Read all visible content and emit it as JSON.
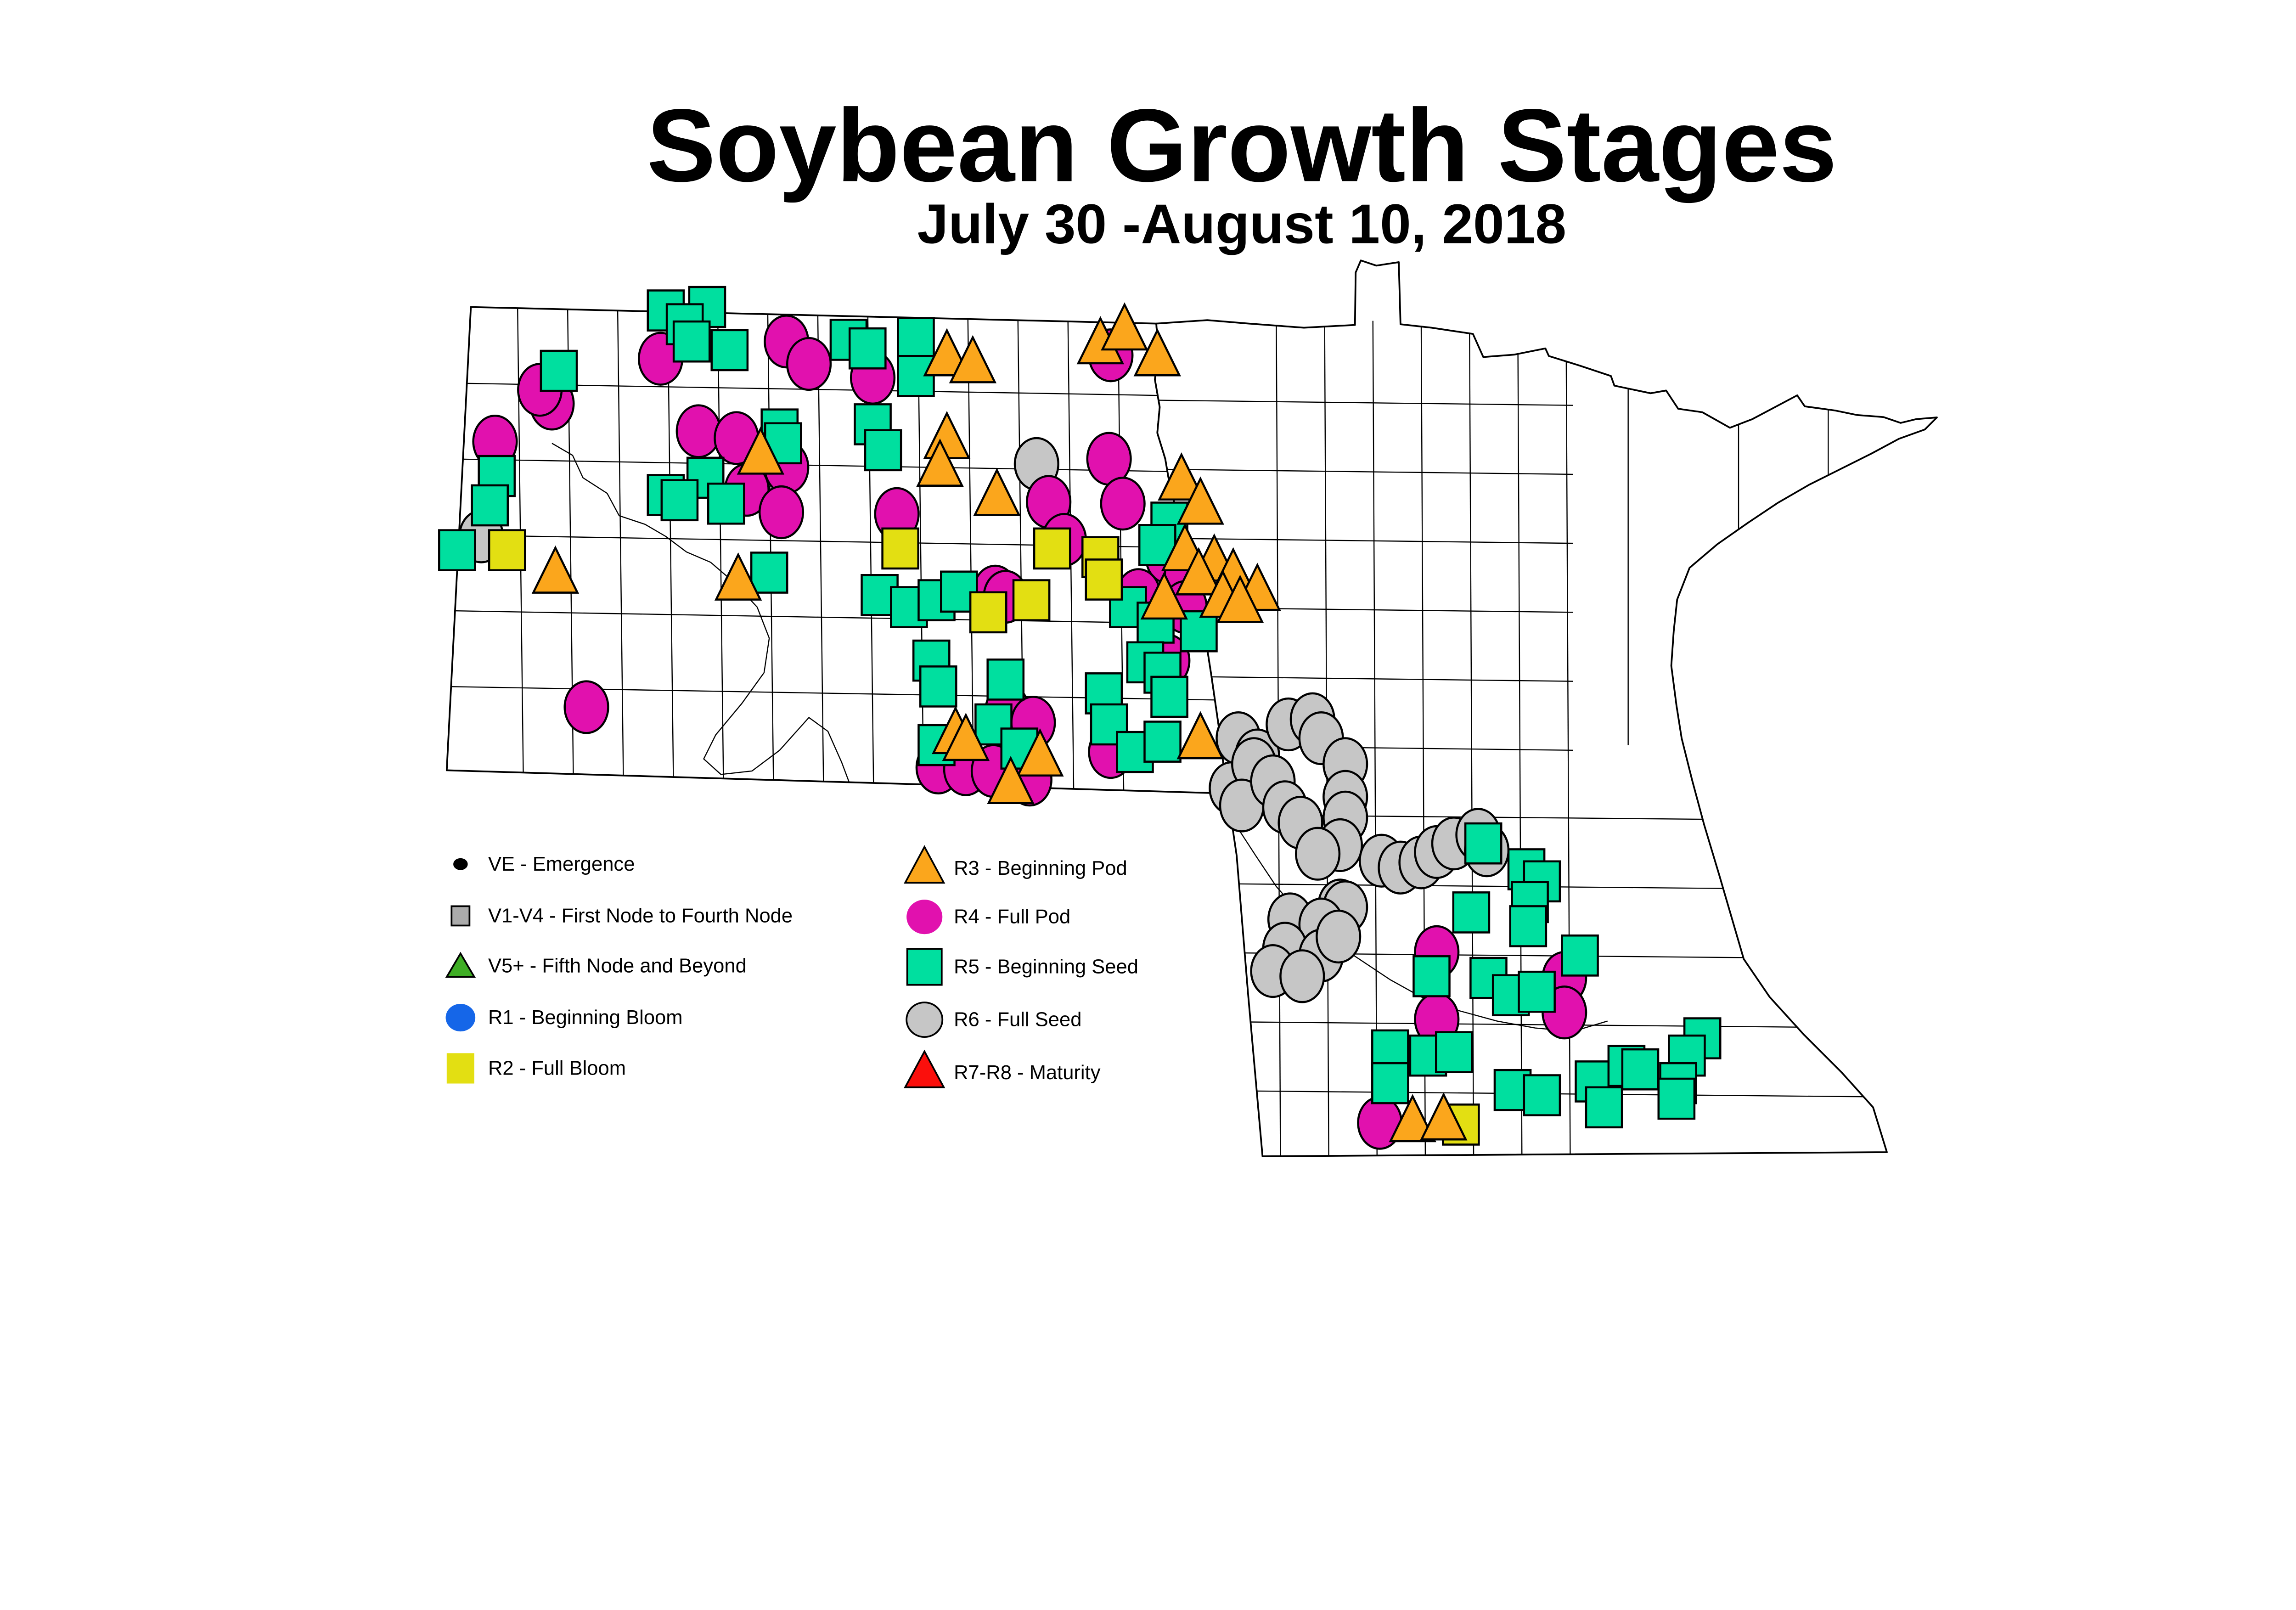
{
  "title": "Soybean Growth Stages",
  "subtitle": "July 30 -August 10, 2018",
  "legend": {
    "column1": [
      {
        "id": "VE",
        "label": "VE - Emergence",
        "shape": "dot",
        "color": "#000000",
        "outlined": false,
        "icon_size": "small"
      },
      {
        "id": "V1-V4",
        "label": "V1-V4 - First Node to Fourth Node",
        "shape": "square",
        "color": "#ABABAB",
        "outlined": true,
        "icon_size": "small"
      },
      {
        "id": "V5+",
        "label": "V5+ - Fifth Node and Beyond",
        "shape": "triangle",
        "color": "#3FAE25",
        "outlined": true,
        "icon_size": "small"
      },
      {
        "id": "R1",
        "label": "R1 - Beginning Bloom",
        "shape": "circle",
        "color": "#1566E8",
        "outlined": false,
        "icon_size": "small"
      },
      {
        "id": "R2",
        "label": "R2 - Full Bloom",
        "shape": "square",
        "color": "#E3DF12",
        "outlined": false,
        "icon_size": "medium"
      }
    ],
    "column2": [
      {
        "id": "R3",
        "label": "R3 - Beginning Pod",
        "shape": "triangle",
        "color": "#FBA61C",
        "outlined": true,
        "icon_size": "large"
      },
      {
        "id": "R4",
        "label": "R4 - Full Pod",
        "shape": "circle",
        "color": "#E111AE",
        "outlined": false,
        "icon_size": "large"
      },
      {
        "id": "R5",
        "label": "R5 - Beginning Seed",
        "shape": "square",
        "color": "#00DF9F",
        "outlined": true,
        "icon_size": "large"
      },
      {
        "id": "R6",
        "label": "R6 - Full Seed",
        "shape": "circle",
        "color": "#C6C6C6",
        "outlined": true,
        "icon_size": "large"
      },
      {
        "id": "R7-R8",
        "label": "R7-R8 - Maturity",
        "shape": "triangle",
        "color": "#FB0F0C",
        "outlined": true,
        "icon_size": "large"
      }
    ]
  },
  "map_data": {
    "type": "marker-map",
    "region": "North Dakota and Minnesota with county boundaries",
    "marker_stage_shapes": {
      "R3": "triangle",
      "R4": "circle",
      "R5": "square",
      "R6": "circle",
      "R2": "square"
    },
    "markers": {
      "R6": [
        [
          1395,
          1555
        ],
        [
          3005,
          1345
        ],
        [
          3590,
          2140
        ],
        [
          3645,
          2190
        ],
        [
          3630,
          2270
        ],
        [
          3570,
          2285
        ],
        [
          3735,
          2100
        ],
        [
          3805,
          2085
        ],
        [
          3830,
          2140
        ],
        [
          3635,
          2215
        ],
        [
          3600,
          2335
        ],
        [
          3690,
          2265
        ],
        [
          3725,
          2340
        ],
        [
          3770,
          2385
        ],
        [
          3900,
          2215
        ],
        [
          3900,
          2310
        ],
        [
          3900,
          2370
        ],
        [
          3885,
          2450
        ],
        [
          3820,
          2475
        ],
        [
          3885,
          2625
        ],
        [
          4005,
          2495
        ],
        [
          4060,
          2515
        ],
        [
          4120,
          2500
        ],
        [
          4165,
          2470
        ],
        [
          4215,
          2445
        ],
        [
          4285,
          2420
        ],
        [
          4310,
          2465
        ],
        [
          3900,
          2630
        ],
        [
          3740,
          2665
        ],
        [
          3830,
          2680
        ],
        [
          3725,
          2750
        ],
        [
          3830,
          2770
        ],
        [
          3690,
          2815
        ],
        [
          3775,
          2830
        ],
        [
          3880,
          2715
        ]
      ],
      "R4": [
        [
          1915,
          1040
        ],
        [
          2280,
          990
        ],
        [
          2345,
          1055
        ],
        [
          1600,
          1170
        ],
        [
          1565,
          1130
        ],
        [
          1435,
          1280
        ],
        [
          2025,
          1250
        ],
        [
          2135,
          1270
        ],
        [
          2280,
          1355
        ],
        [
          2165,
          1420
        ],
        [
          2265,
          1485
        ],
        [
          2530,
          1095
        ],
        [
          3220,
          1030
        ],
        [
          3040,
          1455
        ],
        [
          3215,
          1330
        ],
        [
          3255,
          1460
        ],
        [
          3085,
          1565
        ],
        [
          3385,
          1615
        ],
        [
          3440,
          1665
        ],
        [
          2885,
          1715
        ],
        [
          2915,
          1730
        ],
        [
          2920,
          2060
        ],
        [
          2995,
          2095
        ],
        [
          2720,
          2225
        ],
        [
          2800,
          2230
        ],
        [
          2880,
          2235
        ],
        [
          2985,
          2260
        ],
        [
          3300,
          1725
        ],
        [
          3435,
          1760
        ],
        [
          3385,
          1915
        ],
        [
          3220,
          2180
        ],
        [
          1700,
          2050
        ],
        [
          2600,
          1490
        ],
        [
          4165,
          2760
        ],
        [
          4165,
          2955
        ],
        [
          4535,
          2835
        ],
        [
          4535,
          2935
        ],
        [
          4000,
          3255
        ]
      ],
      "R5": [
        [
          1930,
          900
        ],
        [
          2050,
          890
        ],
        [
          1985,
          940
        ],
        [
          2005,
          990
        ],
        [
          2115,
          1015
        ],
        [
          2460,
          985
        ],
        [
          2515,
          1010
        ],
        [
          2655,
          980
        ],
        [
          2655,
          1090
        ],
        [
          1620,
          1075
        ],
        [
          2530,
          1230
        ],
        [
          2560,
          1305
        ],
        [
          1440,
          1380
        ],
        [
          1420,
          1465
        ],
        [
          2045,
          1385
        ],
        [
          2260,
          1245
        ],
        [
          2270,
          1285
        ],
        [
          1930,
          1435
        ],
        [
          1970,
          1450
        ],
        [
          2105,
          1460
        ],
        [
          1325,
          1595
        ],
        [
          3390,
          1515
        ],
        [
          3355,
          1580
        ],
        [
          2550,
          1725
        ],
        [
          2635,
          1760
        ],
        [
          2715,
          1740
        ],
        [
          2780,
          1715
        ],
        [
          2700,
          1915
        ],
        [
          2720,
          1990
        ],
        [
          2915,
          1970
        ],
        [
          2880,
          2100
        ],
        [
          2955,
          2170
        ],
        [
          2715,
          2160
        ],
        [
          3270,
          1760
        ],
        [
          3350,
          1805
        ],
        [
          3475,
          1830
        ],
        [
          3320,
          1920
        ],
        [
          3370,
          1950
        ],
        [
          3390,
          2020
        ],
        [
          3200,
          2010
        ],
        [
          3215,
          2100
        ],
        [
          3290,
          2180
        ],
        [
          3370,
          2150
        ],
        [
          2230,
          1660
        ],
        [
          4300,
          2445
        ],
        [
          4425,
          2520
        ],
        [
          4470,
          2555
        ],
        [
          4435,
          2615
        ],
        [
          4265,
          2645
        ],
        [
          4430,
          2685
        ],
        [
          4580,
          2770
        ],
        [
          4150,
          2830
        ],
        [
          4315,
          2835
        ],
        [
          4380,
          2885
        ],
        [
          4455,
          2875
        ],
        [
          4030,
          3045
        ],
        [
          4140,
          3060
        ],
        [
          4215,
          3050
        ],
        [
          4030,
          3140
        ],
        [
          4385,
          3160
        ],
        [
          4470,
          3175
        ],
        [
          4620,
          3135
        ],
        [
          4715,
          3090
        ],
        [
          4935,
          3010
        ],
        [
          4890,
          3060
        ],
        [
          4755,
          3100
        ],
        [
          4865,
          3140
        ],
        [
          4650,
          3210
        ],
        [
          4860,
          3185
        ]
      ],
      "R2": [
        [
          1470,
          1595
        ],
        [
          2610,
          1590
        ],
        [
          3050,
          1590
        ],
        [
          3190,
          1615
        ],
        [
          3200,
          1680
        ],
        [
          2865,
          1775
        ],
        [
          2990,
          1740
        ],
        [
          4235,
          3260
        ]
      ],
      "R3": [
        [
          2205,
          1315
        ],
        [
          1610,
          1660
        ],
        [
          2745,
          1030
        ],
        [
          2820,
          1050
        ],
        [
          2745,
          1270
        ],
        [
          2725,
          1350
        ],
        [
          2890,
          1435
        ],
        [
          3190,
          995
        ],
        [
          3260,
          955
        ],
        [
          3355,
          1030
        ],
        [
          3425,
          1390
        ],
        [
          3480,
          1460
        ],
        [
          3435,
          1595
        ],
        [
          3520,
          1625
        ],
        [
          3575,
          1665
        ],
        [
          3475,
          1665
        ],
        [
          3645,
          1710
        ],
        [
          2770,
          2125
        ],
        [
          2800,
          2145
        ],
        [
          3015,
          2190
        ],
        [
          3480,
          2140
        ],
        [
          3375,
          1735
        ],
        [
          3545,
          1730
        ],
        [
          3595,
          1745
        ],
        [
          2140,
          1680
        ],
        [
          2930,
          2270
        ],
        [
          4095,
          3250
        ],
        [
          4185,
          3245
        ]
      ]
    }
  },
  "colors": {
    "background": "#ffffff",
    "map_outline": "#000000",
    "r3_orange": "#FBA61C",
    "r4_magenta": "#E111AE",
    "r5_teal": "#00DF9F",
    "r6_gray": "#C6C6C6",
    "r2_yellow": "#E3DF12",
    "v5_green": "#3FAE25",
    "r1_blue": "#1566E8",
    "r7_red": "#FB0F0C"
  }
}
